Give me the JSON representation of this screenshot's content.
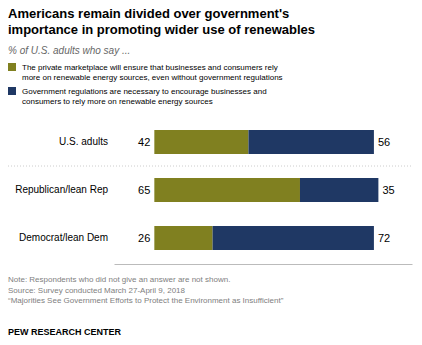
{
  "chart_data": {
    "type": "bar",
    "orientation": "horizontal",
    "stacked": true,
    "title": "Americans remain divided over government's\nimportance in promoting wider use of renewables",
    "subtitle": "% of U.S. adults who say ...",
    "categories": [
      "U.S. adults",
      "Republican/lean Rep",
      "Democrat/lean Dem"
    ],
    "series": [
      {
        "name": "The private marketplace will ensure that businesses and consumers rely\nmore on renewable energy sources, even without government regulations",
        "color": "#808020",
        "values": [
          42,
          65,
          26
        ]
      },
      {
        "name": "Government regulations are necessary to encourage businesses and\nconsumers to rely more on renewable energy sources",
        "color": "#1F3864",
        "values": [
          56,
          35,
          72
        ]
      }
    ],
    "xlim": [
      -18,
      115
    ],
    "tick_labels": "y",
    "data_labels": true,
    "legend": "upper left",
    "notes": [
      "Note: Respondents who did not give an answer are not shown.",
      "Source: Survey conducted March 27-April 9, 2018",
      "“Majorities See Government Efforts to Protect the Environment as Insufficient”"
    ],
    "footer": "PEW RESEARCH CENTER"
  }
}
